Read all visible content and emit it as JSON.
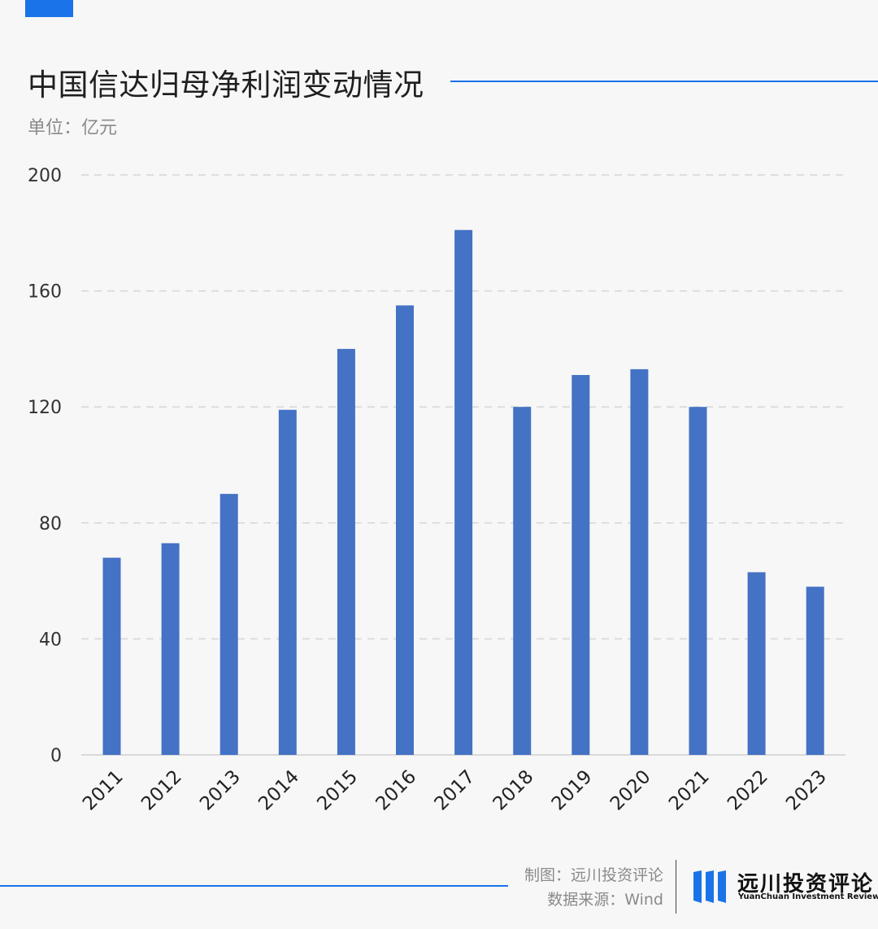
{
  "header": {
    "title": "中国信达归母净利润变动情况",
    "unit": "单位：亿元",
    "accent_color": "#1a73e8"
  },
  "footer": {
    "credit_line1": "制图：远川投资评论",
    "credit_line2": "数据来源：Wind",
    "logo_cn": "远川投资评论",
    "logo_en": "YuanChuan Investment Review",
    "logo_icon": "yuanchuan-logo-icon"
  },
  "chart_data": {
    "type": "bar",
    "categories": [
      "2011",
      "2012",
      "2013",
      "2014",
      "2015",
      "2016",
      "2017",
      "2018",
      "2019",
      "2020",
      "2021",
      "2022",
      "2023"
    ],
    "series": [
      {
        "values": [
          68,
          73,
          90,
          119,
          140,
          155,
          181,
          120,
          131,
          133,
          120,
          63,
          58
        ]
      }
    ],
    "ylim": [
      0,
      200
    ],
    "yticks": [
      0,
      40,
      80,
      120,
      160,
      200
    ],
    "grid": true,
    "bar_color": "#4472c4"
  }
}
